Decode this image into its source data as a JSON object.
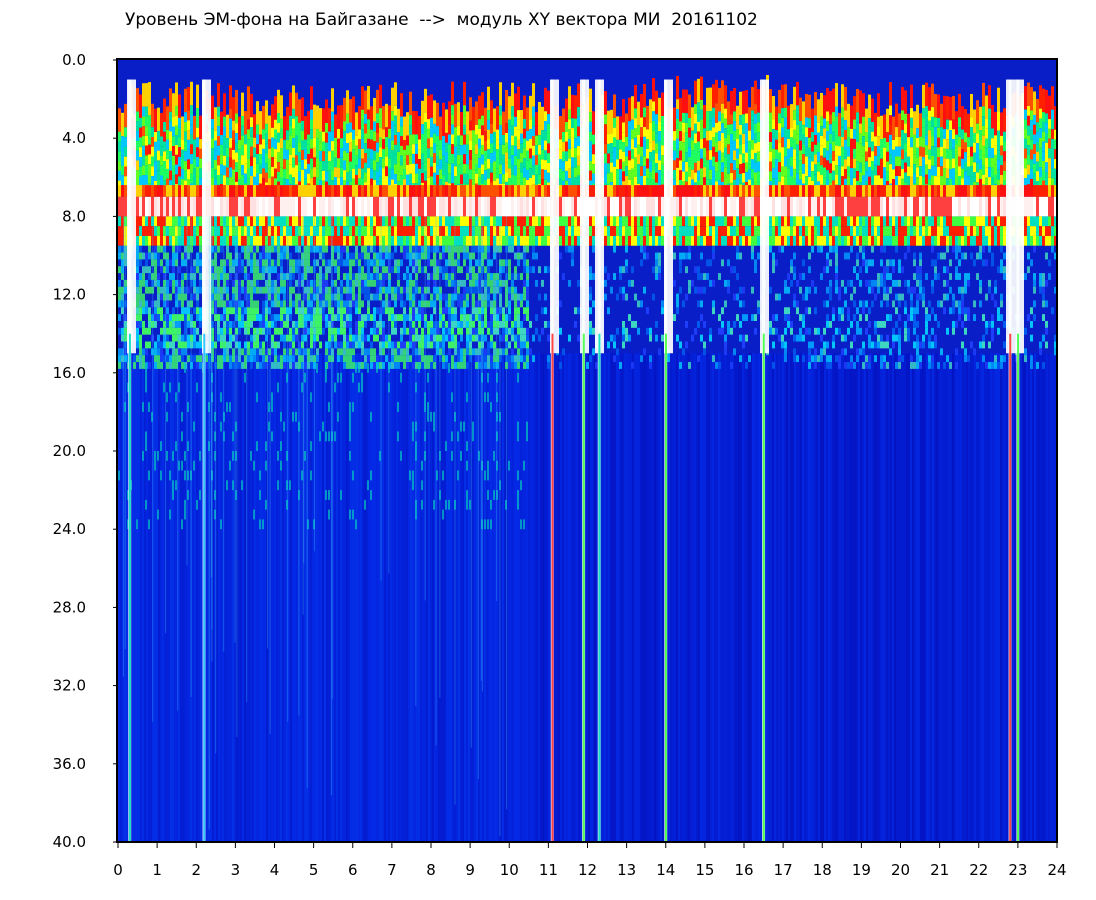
{
  "chart_data": {
    "type": "heatmap",
    "title": "Уровень ЭМ-фона на Байгазане  -->  модуль XY вектора МИ  20161102",
    "xlabel": "",
    "ylabel": "",
    "x_ticks": [
      "0",
      "1",
      "2",
      "3",
      "4",
      "5",
      "6",
      "7",
      "8",
      "9",
      "10",
      "11",
      "12",
      "13",
      "14",
      "15",
      "16",
      "17",
      "18",
      "19",
      "20",
      "21",
      "22",
      "23",
      "24"
    ],
    "y_ticks": [
      "0.0",
      "4.0",
      "8.0",
      "12.0",
      "16.0",
      "20.0",
      "24.0",
      "28.0",
      "32.0",
      "36.0",
      "40.0"
    ],
    "xlim": [
      0,
      24
    ],
    "ylim": [
      0,
      40
    ],
    "y_inverted": true,
    "grid": false,
    "colormap": [
      "#0000b4",
      "#0030e0",
      "#00a0ff",
      "#00e0c0",
      "#40ff40",
      "#ffff00",
      "#ff2000",
      "#ffffff"
    ],
    "bands": [
      {
        "from": 1.5,
        "to": 7.0,
        "level": "green-cyan with red edge"
      },
      {
        "from": 7.0,
        "to": 8.0,
        "level": "white saturated"
      },
      {
        "from": 8.0,
        "to": 9.5,
        "level": "red-yellow-green"
      },
      {
        "from": 9.5,
        "to": 15.0,
        "level": "cyan-blue speckle"
      },
      {
        "from": 15.0,
        "to": 40.0,
        "level": "dark blue background"
      }
    ],
    "vertical_streaks": [
      0.3,
      2.2,
      11.1,
      11.9,
      12.3,
      14.0,
      16.5,
      22.8,
      23.0
    ]
  }
}
